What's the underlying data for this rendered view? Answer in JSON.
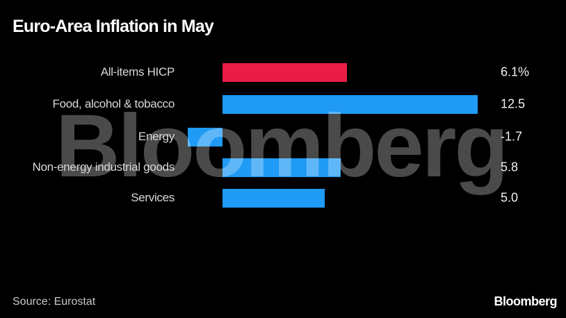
{
  "header": {
    "title": "Euro-Area Inflation in May"
  },
  "chart_data": {
    "type": "bar",
    "orientation": "horizontal",
    "title": "Euro-Area Inflation in May",
    "categories": [
      "All-items HICP",
      "Food, alcohol & tobacco",
      "Energy",
      "Non-energy industrial goods",
      "Services"
    ],
    "values": [
      6.1,
      12.5,
      -1.7,
      5.8,
      5.0
    ],
    "value_labels": [
      "6.1%",
      "12.5",
      "-1.7",
      "5.8",
      "5.0"
    ],
    "bar_colors": [
      "#e91d45",
      "#1f9af5",
      "#1f9af5",
      "#1f9af5",
      "#1f9af5"
    ],
    "unit": "percent, year-over-year",
    "xlim": [
      -1.7,
      12.5
    ],
    "grid": false,
    "axis_labels_visible": false,
    "legend": "none"
  },
  "watermark": {
    "text": "Bloomberg"
  },
  "footer": {
    "source": "Source: Eurostat",
    "brand": "Bloomberg"
  },
  "colors": {
    "background": "#000000",
    "accent_red": "#e91d45",
    "accent_blue": "#1f9af5",
    "text_primary": "#ffffff",
    "text_secondary": "#d9d9d9",
    "text_muted": "#c9c9c9"
  }
}
